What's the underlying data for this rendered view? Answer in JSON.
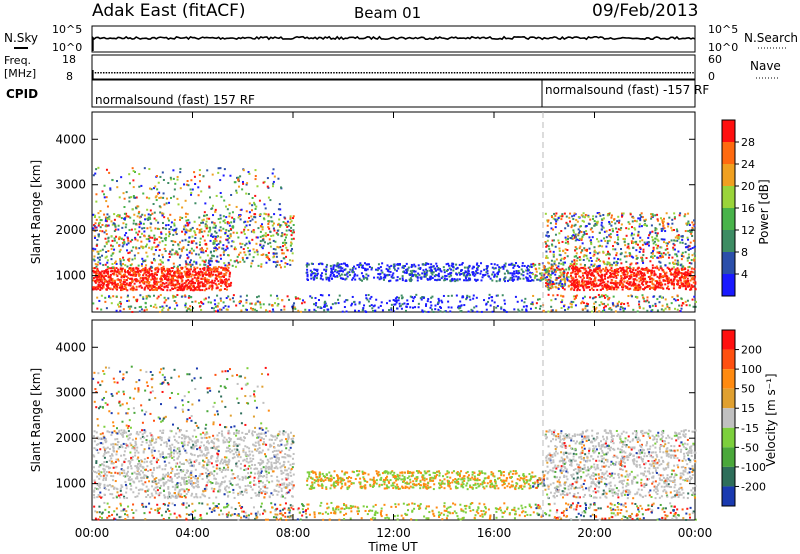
{
  "header": {
    "radar": "Adak East (fitACF)",
    "beam": "Beam 01",
    "date": "09/Feb/2013"
  },
  "noise_panel": {
    "left_label": "N.Sky",
    "right_label": "N.Search",
    "left_ticks": [
      "10^5",
      "10^0"
    ],
    "right_ticks": [
      "10^5",
      "10^0"
    ]
  },
  "freq_panel": {
    "left_label_top": "Freq.",
    "left_label_unit": "[MHz]",
    "right_label": "Nave",
    "left_ticks": [
      "18",
      "8"
    ],
    "right_ticks": [
      "60",
      "0"
    ]
  },
  "cpid_panel": {
    "label": "CPID",
    "segments": [
      {
        "text": "normalsound (fast) 157 RF",
        "start_hour": 0
      },
      {
        "text": "normalsound (fast) -157 RF",
        "start_hour": 18.1
      }
    ]
  },
  "time_axis": {
    "xlabel": "Time UT",
    "ticks": [
      "00:00",
      "04:00",
      "08:00",
      "12:00",
      "16:00",
      "20:00",
      "00:00"
    ]
  },
  "chart_data": [
    {
      "type": "heatmap",
      "name": "power",
      "ylabel": "Slant Range [km]",
      "yticks": [
        "1000",
        "2000",
        "3000",
        "4000"
      ],
      "ylim": [
        200,
        4600
      ],
      "xlim": [
        0,
        24
      ],
      "colorbar": {
        "label": "Power [dB]",
        "ticks": [
          "4",
          "8",
          "12",
          "16",
          "20",
          "24",
          "28"
        ],
        "range": [
          0,
          32
        ],
        "colors": [
          "#1a1aff",
          "#2b4faa",
          "#3d8c63",
          "#48b34a",
          "#9ad43a",
          "#f0a020",
          "#ff6a10",
          "#ff1010"
        ]
      }
    },
    {
      "type": "heatmap",
      "name": "velocity",
      "ylabel": "Slant Range [km]",
      "yticks": [
        "1000",
        "2000",
        "3000",
        "4000"
      ],
      "ylim": [
        200,
        4600
      ],
      "xlim": [
        0,
        24
      ],
      "colorbar": {
        "label": "Velocity [m s⁻¹]",
        "ticks": [
          "200",
          "100",
          "50",
          "15",
          "-15",
          "-50",
          "-100",
          "-200"
        ],
        "colors": [
          "#1a3ab0",
          "#2e6e5a",
          "#4aa83a",
          "#7ccf3c",
          "#c0c0c0",
          "#e0a030",
          "#ff8a10",
          "#ff5010",
          "#ff1010"
        ]
      }
    }
  ]
}
